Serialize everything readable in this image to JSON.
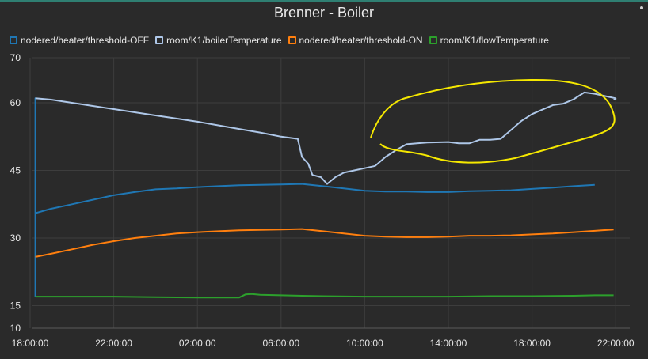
{
  "chart_data": {
    "type": "line",
    "title": "Brenner - Boiler",
    "x_ticks": [
      "18:00:00",
      "22:00:00",
      "02:00:00",
      "06:00:00",
      "10:00:00",
      "14:00:00",
      "18:00:00",
      "22:00:00"
    ],
    "y_ticks": [
      10,
      15,
      30,
      45,
      60,
      70
    ],
    "ylim": [
      10,
      70
    ],
    "xlim_hours": [
      0,
      28.5
    ],
    "grid": true,
    "legend": "top-left",
    "series": [
      {
        "name": "nodered/heater/threshold-OFF",
        "color": "#1f77b4",
        "points": [
          [
            0.25,
            17.0
          ],
          [
            0.25,
            61.0
          ],
          [
            0.25,
            35.5
          ],
          [
            1.0,
            36.5
          ],
          [
            2.0,
            37.5
          ],
          [
            3.0,
            38.5
          ],
          [
            4.0,
            39.5
          ],
          [
            5.0,
            40.2
          ],
          [
            6.0,
            40.8
          ],
          [
            7.0,
            41.0
          ],
          [
            8.0,
            41.3
          ],
          [
            9.0,
            41.5
          ],
          [
            10.0,
            41.7
          ],
          [
            11.0,
            41.8
          ],
          [
            12.0,
            41.9
          ],
          [
            13.0,
            42.0
          ],
          [
            14.0,
            41.5
          ],
          [
            15.0,
            41.0
          ],
          [
            16.0,
            40.5
          ],
          [
            17.0,
            40.3
          ],
          [
            18.0,
            40.3
          ],
          [
            19.0,
            40.2
          ],
          [
            20.0,
            40.2
          ],
          [
            21.0,
            40.4
          ],
          [
            22.0,
            40.5
          ],
          [
            23.0,
            40.6
          ],
          [
            24.0,
            40.9
          ],
          [
            25.0,
            41.2
          ],
          [
            26.0,
            41.5
          ],
          [
            27.0,
            41.8
          ]
        ]
      },
      {
        "name": "room/K1/boilerTemperature",
        "color": "#aec7e8",
        "points": [
          [
            0.25,
            61.0
          ],
          [
            1.0,
            60.7
          ],
          [
            2.0,
            60.0
          ],
          [
            3.0,
            59.3
          ],
          [
            4.0,
            58.6
          ],
          [
            5.0,
            57.9
          ],
          [
            6.0,
            57.2
          ],
          [
            7.0,
            56.5
          ],
          [
            8.0,
            55.8
          ],
          [
            9.0,
            55.0
          ],
          [
            10.0,
            54.2
          ],
          [
            11.0,
            53.4
          ],
          [
            12.0,
            52.5
          ],
          [
            12.8,
            52.0
          ],
          [
            13.0,
            48.0
          ],
          [
            13.3,
            46.5
          ],
          [
            13.5,
            44.0
          ],
          [
            13.9,
            43.5
          ],
          [
            14.2,
            42.0
          ],
          [
            14.6,
            43.5
          ],
          [
            15.0,
            44.5
          ],
          [
            15.5,
            45.0
          ],
          [
            16.0,
            45.5
          ],
          [
            16.5,
            46.0
          ],
          [
            17.0,
            48.0
          ],
          [
            17.5,
            49.5
          ],
          [
            18.0,
            50.8
          ],
          [
            18.5,
            51.0
          ],
          [
            19.0,
            51.2
          ],
          [
            20.0,
            51.3
          ],
          [
            20.5,
            51.0
          ],
          [
            21.0,
            51.0
          ],
          [
            21.5,
            51.8
          ],
          [
            22.0,
            51.8
          ],
          [
            22.5,
            52.0
          ],
          [
            23.0,
            54.0
          ],
          [
            23.5,
            56.0
          ],
          [
            24.0,
            57.5
          ],
          [
            24.5,
            58.5
          ],
          [
            25.0,
            59.5
          ],
          [
            25.5,
            59.8
          ],
          [
            26.0,
            60.8
          ],
          [
            26.5,
            62.3
          ],
          [
            27.0,
            62.0
          ],
          [
            27.5,
            61.5
          ],
          [
            28.0,
            61.0
          ],
          [
            28.0,
            60.8
          ],
          [
            27.9,
            60.7
          ]
        ]
      },
      {
        "name": "nodered/heater/threshold-ON",
        "color": "#ff7f0e",
        "points": [
          [
            0.25,
            25.8
          ],
          [
            1.0,
            26.5
          ],
          [
            2.0,
            27.5
          ],
          [
            3.0,
            28.5
          ],
          [
            4.0,
            29.3
          ],
          [
            5.0,
            30.0
          ],
          [
            6.0,
            30.5
          ],
          [
            7.0,
            31.0
          ],
          [
            8.0,
            31.3
          ],
          [
            9.0,
            31.5
          ],
          [
            10.0,
            31.7
          ],
          [
            11.0,
            31.8
          ],
          [
            12.0,
            31.9
          ],
          [
            13.0,
            32.0
          ],
          [
            14.0,
            31.5
          ],
          [
            15.0,
            31.0
          ],
          [
            16.0,
            30.5
          ],
          [
            17.0,
            30.3
          ],
          [
            18.0,
            30.2
          ],
          [
            19.0,
            30.2
          ],
          [
            20.0,
            30.3
          ],
          [
            21.0,
            30.5
          ],
          [
            22.0,
            30.5
          ],
          [
            23.0,
            30.6
          ],
          [
            24.0,
            30.8
          ],
          [
            25.0,
            31.0
          ],
          [
            26.0,
            31.3
          ],
          [
            27.0,
            31.6
          ],
          [
            27.9,
            31.9
          ]
        ]
      },
      {
        "name": "room/K1/flowTemperature",
        "color": "#2ca02c",
        "points": [
          [
            0.25,
            17.0
          ],
          [
            2.0,
            17.0
          ],
          [
            4.0,
            17.0
          ],
          [
            6.0,
            16.9
          ],
          [
            8.0,
            16.8
          ],
          [
            10.0,
            16.8
          ],
          [
            10.3,
            17.5
          ],
          [
            10.6,
            17.6
          ],
          [
            11.0,
            17.4
          ],
          [
            12.0,
            17.3
          ],
          [
            13.0,
            17.2
          ],
          [
            14.0,
            17.1
          ],
          [
            16.0,
            17.0
          ],
          [
            18.0,
            17.0
          ],
          [
            20.0,
            17.0
          ],
          [
            22.0,
            17.1
          ],
          [
            24.0,
            17.1
          ],
          [
            26.0,
            17.2
          ],
          [
            27.0,
            17.3
          ],
          [
            27.9,
            17.3
          ]
        ]
      }
    ],
    "annotation_color": "#f5e800"
  }
}
